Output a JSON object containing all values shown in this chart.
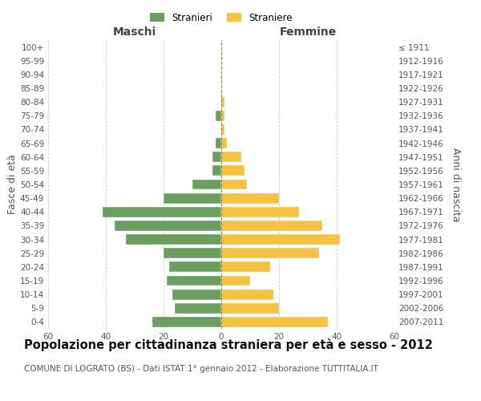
{
  "age_groups": [
    "0-4",
    "5-9",
    "10-14",
    "15-19",
    "20-24",
    "25-29",
    "30-34",
    "35-39",
    "40-44",
    "45-49",
    "50-54",
    "55-59",
    "60-64",
    "65-69",
    "70-74",
    "75-79",
    "80-84",
    "85-89",
    "90-94",
    "95-99",
    "100+"
  ],
  "birth_years": [
    "2007-2011",
    "2002-2006",
    "1997-2001",
    "1992-1996",
    "1987-1991",
    "1982-1986",
    "1977-1981",
    "1972-1976",
    "1967-1971",
    "1962-1966",
    "1957-1961",
    "1952-1956",
    "1947-1951",
    "1942-1946",
    "1937-1941",
    "1932-1936",
    "1927-1931",
    "1922-1926",
    "1917-1921",
    "1912-1916",
    "≤ 1911"
  ],
  "males": [
    24,
    16,
    17,
    19,
    18,
    20,
    33,
    37,
    41,
    20,
    10,
    3,
    3,
    2,
    0,
    2,
    0,
    0,
    0,
    0,
    0
  ],
  "females": [
    37,
    20,
    18,
    10,
    17,
    34,
    41,
    35,
    27,
    20,
    9,
    8,
    7,
    2,
    1,
    1,
    1,
    0,
    0,
    0,
    0
  ],
  "male_color": "#6a9e5e",
  "female_color": "#f5c242",
  "grid_color": "#cccccc",
  "center_line_color": "#888855",
  "xlim": 60,
  "xlabel_left": "Maschi",
  "xlabel_right": "Femmine",
  "ylabel_left": "Fasce di età",
  "ylabel_right": "Anni di nascita",
  "legend_male": "Stranieri",
  "legend_female": "Straniere",
  "title": "Popolazione per cittadinanza straniera per età e sesso - 2012",
  "subtitle": "COMUNE DI LOGRATO (BS) - Dati ISTAT 1° gennaio 2012 - Elaborazione TUTTITALIA.IT",
  "title_fontsize": 10.5,
  "subtitle_fontsize": 7.5,
  "tick_fontsize": 7.5,
  "label_fontsize": 9,
  "background_color": "#ffffff"
}
